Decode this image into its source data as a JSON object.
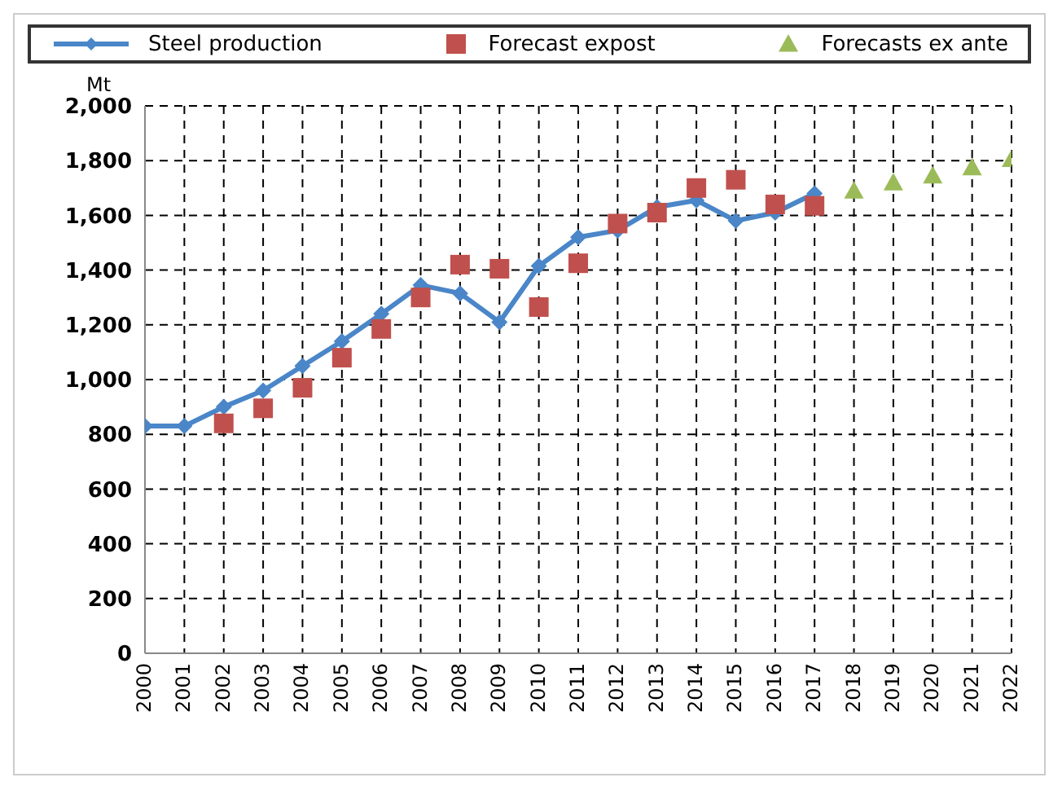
{
  "chart_data": {
    "type": "line",
    "ylabel": "Mt",
    "categories": [
      "2000",
      "2001",
      "2002",
      "2003",
      "2004",
      "2005",
      "2006",
      "2007",
      "2008",
      "2009",
      "2010",
      "2011",
      "2012",
      "2013",
      "2014",
      "2015",
      "2016",
      "2017",
      "2018",
      "2019",
      "2020",
      "2021",
      "2022"
    ],
    "series": [
      {
        "name": "Steel production",
        "color": "#4a86c8",
        "marker": "diamond",
        "values": [
          830,
          830,
          900,
          960,
          1050,
          1140,
          1240,
          1345,
          1315,
          1210,
          1415,
          1520,
          1545,
          1630,
          1655,
          1580,
          1610,
          1680,
          null,
          null,
          null,
          null,
          null
        ]
      },
      {
        "name": "Forecast expost",
        "type": "scatter",
        "color": "#c0504d",
        "marker": "square",
        "values": [
          null,
          null,
          840,
          895,
          970,
          1080,
          1185,
          1300,
          1420,
          1405,
          1265,
          1425,
          1570,
          1610,
          1700,
          1730,
          1640,
          1635,
          null,
          null,
          null,
          null,
          null
        ]
      },
      {
        "name": "Forecasts ex ante",
        "type": "scatter",
        "color": "#9bbb59",
        "marker": "triangle",
        "values": [
          null,
          null,
          null,
          null,
          null,
          null,
          null,
          null,
          null,
          null,
          null,
          null,
          null,
          null,
          null,
          null,
          null,
          null,
          1690,
          1720,
          1745,
          1775,
          1805
        ]
      }
    ],
    "ylim": [
      0,
      2000
    ],
    "yticks": [
      0,
      200,
      400,
      600,
      800,
      {
        "value": 1000,
        "label": "1,000"
      },
      {
        "value": 1200,
        "label": "1,200"
      },
      {
        "value": 1400,
        "label": "1,400"
      },
      {
        "value": 1600,
        "label": "1,600"
      },
      {
        "value": 1800,
        "label": "1,800"
      },
      {
        "value": 2000,
        "label": "2,000"
      }
    ],
    "grid": true,
    "legend": "top"
  }
}
